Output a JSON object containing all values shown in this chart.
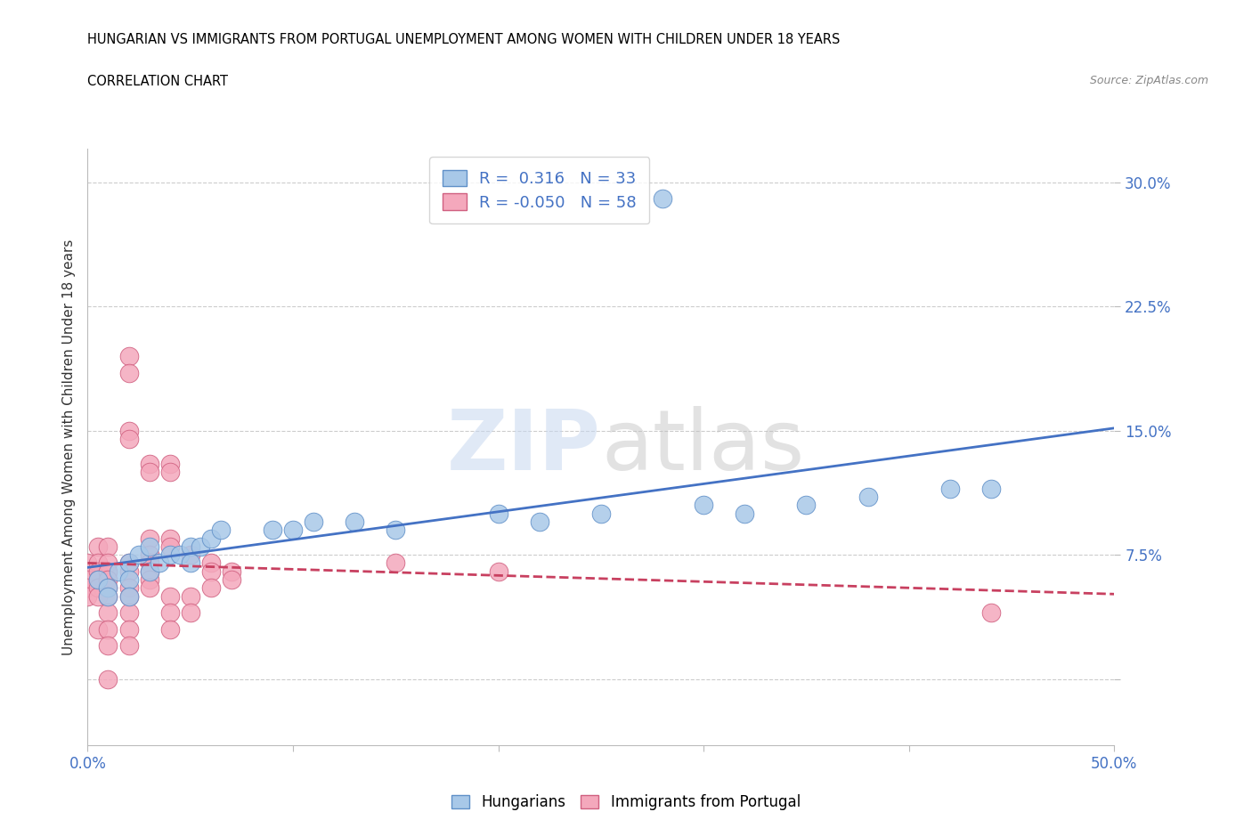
{
  "title_line1": "HUNGARIAN VS IMMIGRANTS FROM PORTUGAL UNEMPLOYMENT AMONG WOMEN WITH CHILDREN UNDER 18 YEARS",
  "title_line2": "CORRELATION CHART",
  "source": "Source: ZipAtlas.com",
  "ylabel": "Unemployment Among Women with Children Under 18 years",
  "xlim": [
    0.0,
    0.5
  ],
  "ylim": [
    -0.04,
    0.32
  ],
  "xticks": [
    0.0,
    0.1,
    0.2,
    0.3,
    0.4,
    0.5
  ],
  "yticks": [
    0.0,
    0.075,
    0.15,
    0.225,
    0.3
  ],
  "xticklabels": [
    "0.0%",
    "",
    "",
    "",
    "",
    "50.0%"
  ],
  "yticklabels": [
    "",
    "7.5%",
    "15.0%",
    "22.5%",
    "30.0%"
  ],
  "watermark_part1": "ZIP",
  "watermark_part2": "atlas",
  "blue_R": 0.316,
  "blue_N": 33,
  "pink_R": -0.05,
  "pink_N": 58,
  "blue_color": "#a8c8e8",
  "pink_color": "#f4a8bc",
  "blue_edge_color": "#6090c8",
  "pink_edge_color": "#d06080",
  "blue_line_color": "#4472c4",
  "pink_line_color": "#c84060",
  "grid_color": "#cccccc",
  "blue_scatter": [
    [
      0.005,
      0.06
    ],
    [
      0.01,
      0.055
    ],
    [
      0.01,
      0.05
    ],
    [
      0.015,
      0.065
    ],
    [
      0.02,
      0.07
    ],
    [
      0.02,
      0.06
    ],
    [
      0.02,
      0.05
    ],
    [
      0.025,
      0.075
    ],
    [
      0.03,
      0.08
    ],
    [
      0.03,
      0.065
    ],
    [
      0.035,
      0.07
    ],
    [
      0.04,
      0.075
    ],
    [
      0.045,
      0.075
    ],
    [
      0.05,
      0.08
    ],
    [
      0.05,
      0.07
    ],
    [
      0.055,
      0.08
    ],
    [
      0.06,
      0.085
    ],
    [
      0.065,
      0.09
    ],
    [
      0.09,
      0.09
    ],
    [
      0.1,
      0.09
    ],
    [
      0.11,
      0.095
    ],
    [
      0.13,
      0.095
    ],
    [
      0.15,
      0.09
    ],
    [
      0.2,
      0.1
    ],
    [
      0.22,
      0.095
    ],
    [
      0.25,
      0.1
    ],
    [
      0.3,
      0.105
    ],
    [
      0.32,
      0.1
    ],
    [
      0.35,
      0.105
    ],
    [
      0.38,
      0.11
    ],
    [
      0.42,
      0.115
    ],
    [
      0.44,
      0.115
    ],
    [
      0.28,
      0.29
    ]
  ],
  "pink_scatter": [
    [
      0.0,
      0.07
    ],
    [
      0.0,
      0.06
    ],
    [
      0.0,
      0.055
    ],
    [
      0.0,
      0.05
    ],
    [
      0.005,
      0.08
    ],
    [
      0.005,
      0.07
    ],
    [
      0.005,
      0.065
    ],
    [
      0.005,
      0.06
    ],
    [
      0.005,
      0.055
    ],
    [
      0.005,
      0.05
    ],
    [
      0.005,
      0.03
    ],
    [
      0.01,
      0.08
    ],
    [
      0.01,
      0.07
    ],
    [
      0.01,
      0.065
    ],
    [
      0.01,
      0.06
    ],
    [
      0.01,
      0.055
    ],
    [
      0.01,
      0.05
    ],
    [
      0.01,
      0.04
    ],
    [
      0.01,
      0.03
    ],
    [
      0.01,
      0.02
    ],
    [
      0.01,
      0.0
    ],
    [
      0.02,
      0.195
    ],
    [
      0.02,
      0.185
    ],
    [
      0.02,
      0.15
    ],
    [
      0.02,
      0.145
    ],
    [
      0.02,
      0.07
    ],
    [
      0.02,
      0.065
    ],
    [
      0.02,
      0.055
    ],
    [
      0.02,
      0.05
    ],
    [
      0.02,
      0.04
    ],
    [
      0.02,
      0.03
    ],
    [
      0.02,
      0.02
    ],
    [
      0.03,
      0.13
    ],
    [
      0.03,
      0.125
    ],
    [
      0.03,
      0.085
    ],
    [
      0.03,
      0.075
    ],
    [
      0.03,
      0.07
    ],
    [
      0.03,
      0.065
    ],
    [
      0.03,
      0.06
    ],
    [
      0.03,
      0.055
    ],
    [
      0.04,
      0.13
    ],
    [
      0.04,
      0.125
    ],
    [
      0.04,
      0.085
    ],
    [
      0.04,
      0.08
    ],
    [
      0.04,
      0.05
    ],
    [
      0.04,
      0.04
    ],
    [
      0.04,
      0.03
    ],
    [
      0.05,
      0.075
    ],
    [
      0.05,
      0.05
    ],
    [
      0.05,
      0.04
    ],
    [
      0.06,
      0.07
    ],
    [
      0.06,
      0.065
    ],
    [
      0.06,
      0.055
    ],
    [
      0.07,
      0.065
    ],
    [
      0.07,
      0.06
    ],
    [
      0.15,
      0.07
    ],
    [
      0.2,
      0.065
    ],
    [
      0.44,
      0.04
    ]
  ]
}
